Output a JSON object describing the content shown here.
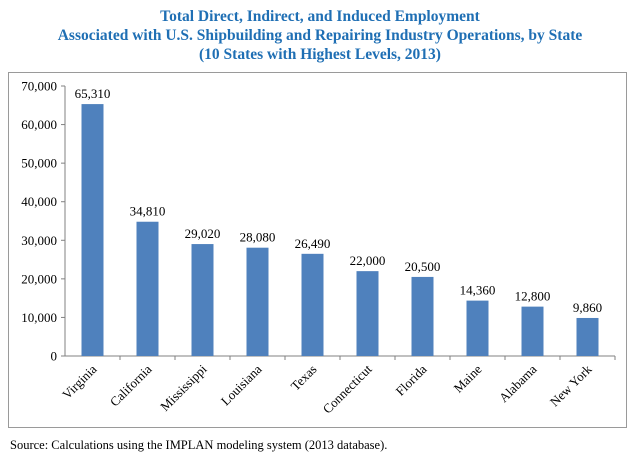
{
  "chart_data": {
    "type": "bar",
    "title": [
      "Total Direct, Indirect, and Induced Employment",
      "Associated with U.S. Shipbuilding and Repairing Industry Operations, by State",
      "(10 States with Highest Levels, 2013)"
    ],
    "categories": [
      "Virginia",
      "California",
      "Mississippi",
      "Louisiana",
      "Texas",
      "Connecticut",
      "Florida",
      "Maine",
      "Alabama",
      "New York"
    ],
    "values": [
      65310,
      34810,
      29020,
      28080,
      26490,
      22000,
      20500,
      14360,
      12800,
      9860
    ],
    "value_labels": [
      "65,310",
      "34,810",
      "29,020",
      "28,080",
      "26,490",
      "22,000",
      "20,500",
      "14,360",
      "12,800",
      "9,860"
    ],
    "ylim": [
      0,
      70000
    ],
    "yticks": [
      0,
      10000,
      20000,
      30000,
      40000,
      50000,
      60000,
      70000
    ],
    "ytick_labels": [
      "0",
      "10,000",
      "20,000",
      "30,000",
      "40,000",
      "50,000",
      "60,000",
      "70,000"
    ],
    "grid": false,
    "bar_color": "#4f81bd"
  },
  "title_color": "#1f6fb4",
  "source": "Source:  Calculations using the IMPLAN modeling system (2013 database)."
}
